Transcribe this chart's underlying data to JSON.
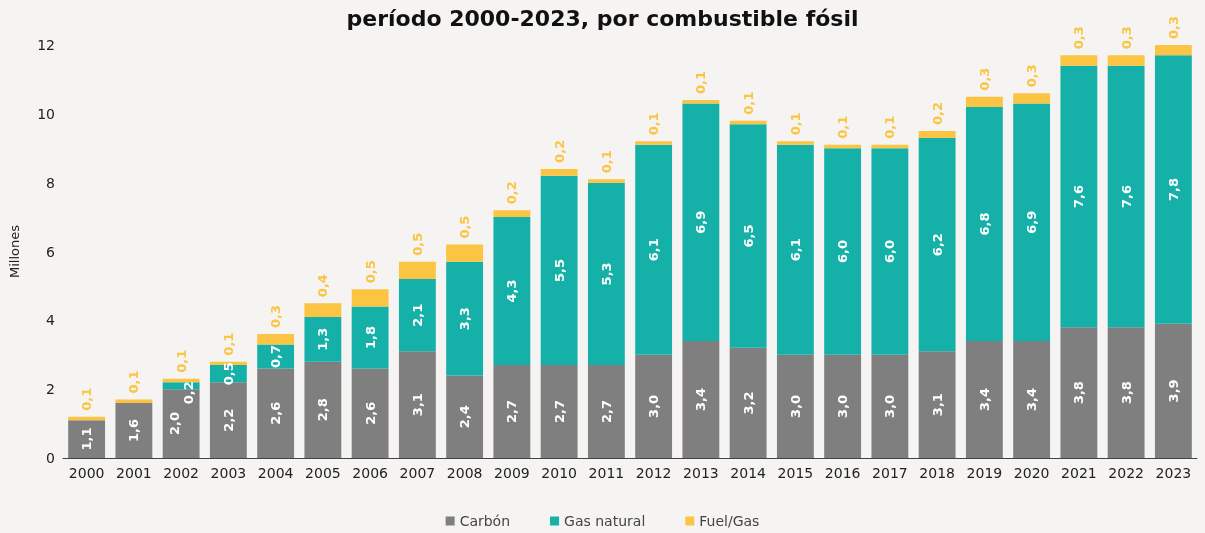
{
  "chart_data": {
    "type": "bar",
    "title": "período 2000-2023, por combustible fósil",
    "ylabel": "Millones",
    "categories": [
      "2000",
      "2001",
      "2002",
      "2003",
      "2004",
      "2005",
      "2006",
      "2007",
      "2008",
      "2009",
      "2010",
      "2011",
      "2012",
      "2013",
      "2014",
      "2015",
      "2016",
      "2017",
      "2018",
      "2019",
      "2020",
      "2021",
      "2022",
      "2023"
    ],
    "stacked": true,
    "data_labels": true,
    "legend": "bottom",
    "grid": false,
    "ylim": [
      0,
      12
    ],
    "yticks": [
      0,
      2,
      4,
      6,
      8,
      10,
      12
    ],
    "series": [
      {
        "name": "Carbón",
        "color": "#7f7f7f",
        "values": [
          1.1,
          1.6,
          2.0,
          2.2,
          2.6,
          2.8,
          2.6,
          3.1,
          2.4,
          2.7,
          2.7,
          2.7,
          3.0,
          3.4,
          3.2,
          3.0,
          3.0,
          3.0,
          3.1,
          3.4,
          3.4,
          3.8,
          3.8,
          3.9
        ],
        "value_labels": [
          "1,1",
          "1,6",
          "2,0",
          "2,2",
          "2,6",
          "2,8",
          "2,6",
          "3,1",
          "2,4",
          "2,7",
          "2,7",
          "2,7",
          "3,0",
          "3,4",
          "3,2",
          "3,0",
          "3,0",
          "3,0",
          "3,1",
          "3,4",
          "3,4",
          "3,8",
          "3,8",
          "3,9"
        ]
      },
      {
        "name": "Gas natural",
        "color": "#15b0a8",
        "values": [
          null,
          null,
          0.2,
          0.5,
          0.7,
          1.3,
          1.8,
          2.1,
          3.3,
          4.3,
          5.5,
          5.3,
          6.1,
          6.9,
          6.5,
          6.1,
          6.0,
          6.0,
          6.2,
          6.8,
          6.9,
          7.6,
          7.6,
          7.8
        ],
        "value_labels": [
          null,
          null,
          "0,2",
          "0,5",
          "0,7",
          "1,3",
          "1,8",
          "2,1",
          "3,3",
          "4,3",
          "5,5",
          "5,3",
          "6,1",
          "6,9",
          "6,5",
          "6,1",
          "6,0",
          "6,0",
          "6,2",
          "6,8",
          "6,9",
          "7,6",
          "7,6",
          "7,8"
        ]
      },
      {
        "name": "Fuel/Gas",
        "color": "#fbc443",
        "values": [
          0.1,
          0.1,
          0.1,
          0.1,
          0.3,
          0.4,
          0.5,
          0.5,
          0.5,
          0.2,
          0.2,
          0.1,
          0.1,
          0.1,
          0.1,
          0.1,
          0.1,
          0.1,
          0.2,
          0.3,
          0.3,
          0.3,
          0.3,
          0.3
        ],
        "value_labels": [
          "0,1",
          "0,1",
          "0,1",
          "0,1",
          "0,3",
          "0,4",
          "0,5",
          "0,5",
          "0,5",
          "0,2",
          "0,2",
          "0,1",
          "0,1",
          "0,1",
          "0,1",
          "0,1",
          "0,1",
          "0,1",
          "0,2",
          "0,3",
          "0,3",
          "0,3",
          "0,3",
          "0,3"
        ]
      }
    ]
  }
}
